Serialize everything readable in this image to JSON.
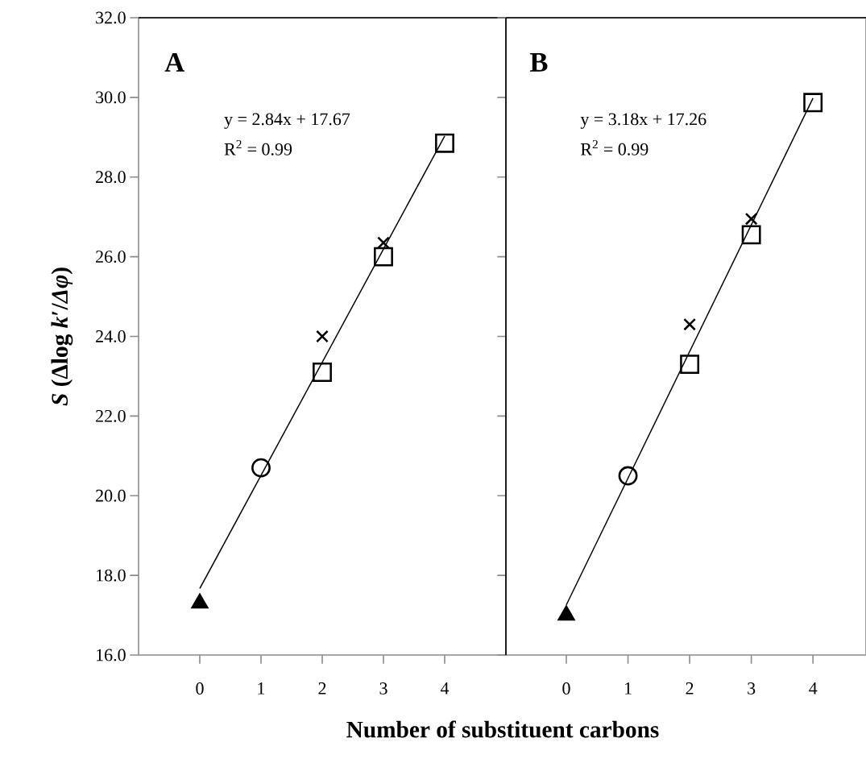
{
  "chart_data": [
    {
      "type": "scatter",
      "ylabel": "*S* (Δlog *k*′/*Δφ*)",
      "xlabel": "Number of substituent carbons",
      "annotations": [
        "A",
        "y = 2.84x + 17.67",
        "R$^{2}$ = 0.99"
      ],
      "xlim": [
        -1,
        5
      ],
      "xticks": [
        0,
        1,
        2,
        3,
        4
      ],
      "ylim": [
        16,
        32
      ],
      "yticks": [
        {
          "value": 16,
          "label": "16.0"
        },
        {
          "value": 18,
          "label": "18.0"
        },
        {
          "value": 20,
          "label": "20.0"
        },
        {
          "value": 22,
          "label": "22.0"
        },
        {
          "value": 24,
          "label": "24.0"
        },
        {
          "value": 26,
          "label": "26.0"
        },
        {
          "value": 28,
          "label": "28.0"
        },
        {
          "value": 30,
          "label": "30.0"
        },
        {
          "value": 32,
          "label": "32.0"
        }
      ],
      "series": [
        {
          "type": "line",
          "x": [
            0,
            4
          ],
          "values": [
            17.67,
            29.03
          ],
          "color": "#000000",
          "marker": "none",
          "line_style": "solid"
        },
        {
          "x": [
            0
          ],
          "values": [
            17.3
          ],
          "color": "#000000",
          "marker": "triangle"
        },
        {
          "x": [
            1
          ],
          "values": [
            20.7
          ],
          "color": "#000000",
          "marker": "circle"
        },
        {
          "x": [
            2,
            3
          ],
          "values": [
            24.0,
            26.35
          ],
          "color": "#000000",
          "marker": "cross"
        },
        {
          "x": [
            2,
            3,
            4
          ],
          "values": [
            23.1,
            26.0,
            28.85
          ],
          "color": "#000000",
          "marker": "square"
        }
      ]
    },
    {
      "type": "scatter",
      "tick_labels": "x",
      "annotations": [
        "B",
        "y = 3.18x + 17.26",
        "R$^{2}$ = 0.99"
      ],
      "xlim": [
        -0.98,
        4.86
      ],
      "xticks": [
        0,
        1,
        2,
        3,
        4
      ],
      "ylim": [
        16,
        32
      ],
      "yticks": [
        {
          "value": 16,
          "label": null
        },
        {
          "value": 18,
          "label": null
        },
        {
          "value": 20,
          "label": null
        },
        {
          "value": 22,
          "label": null
        },
        {
          "value": 24,
          "label": null
        },
        {
          "value": 26,
          "label": null
        },
        {
          "value": 28,
          "label": null
        },
        {
          "value": 30,
          "label": null
        },
        {
          "value": 32,
          "label": null
        }
      ],
      "series": [
        {
          "type": "line",
          "x": [
            0,
            4
          ],
          "values": [
            17.26,
            29.98
          ],
          "color": "#000000",
          "marker": "none",
          "line_style": "solid"
        },
        {
          "x": [
            0
          ],
          "values": [
            17.0
          ],
          "color": "#000000",
          "marker": "triangle"
        },
        {
          "x": [
            1
          ],
          "values": [
            20.5
          ],
          "color": "#000000",
          "marker": "circle"
        },
        {
          "x": [
            2,
            3
          ],
          "values": [
            24.3,
            26.95
          ],
          "color": "#000000",
          "marker": "cross"
        },
        {
          "x": [
            2,
            3,
            4
          ],
          "values": [
            23.3,
            26.55,
            29.87
          ],
          "color": "#000000",
          "marker": "square"
        }
      ]
    }
  ]
}
